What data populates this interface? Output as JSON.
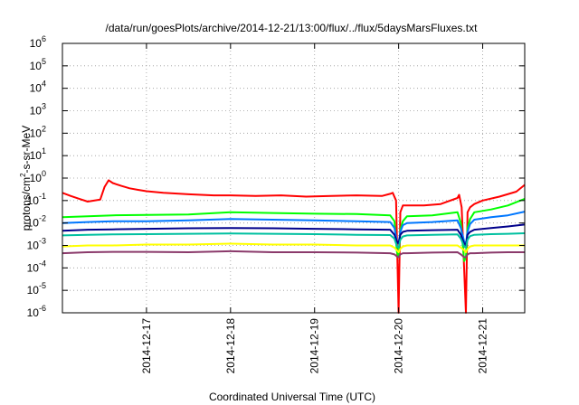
{
  "chart_data": {
    "type": "line",
    "title": "/data/run/goesPlots/archive/2014-12-21/13:00/flux/../flux/5daysMarsFluxes.txt",
    "xlabel": "Coordinated Universal Time (UTC)",
    "ylabel_parts": [
      "protons/cm",
      "2",
      "-s-sr-MeV"
    ],
    "yscale": "log",
    "ylim": [
      1e-06,
      1000000.0
    ],
    "xlim_days": [
      0,
      5.5
    ],
    "x_ticks": [
      {
        "day": 1,
        "label": "2014-12-17"
      },
      {
        "day": 2,
        "label": "2014-12-18"
      },
      {
        "day": 3,
        "label": "2014-12-19"
      },
      {
        "day": 4,
        "label": "2014-12-20"
      },
      {
        "day": 5,
        "label": "2014-12-21"
      }
    ],
    "y_ticks": [
      {
        "value": 1e-06,
        "base": "10",
        "exp": "-6"
      },
      {
        "value": 1e-05,
        "base": "10",
        "exp": "-5"
      },
      {
        "value": 0.0001,
        "base": "10",
        "exp": "-4"
      },
      {
        "value": 0.001,
        "base": "10",
        "exp": "-3"
      },
      {
        "value": 0.01,
        "base": "10",
        "exp": "-2"
      },
      {
        "value": 0.1,
        "base": "10",
        "exp": "-1"
      },
      {
        "value": 1,
        "base": "10",
        "exp": "0"
      },
      {
        "value": 10,
        "base": "10",
        "exp": "1"
      },
      {
        "value": 100,
        "base": "10",
        "exp": "2"
      },
      {
        "value": 1000,
        "base": "10",
        "exp": "3"
      },
      {
        "value": 10000,
        "base": "10",
        "exp": "4"
      },
      {
        "value": 100000,
        "base": "10",
        "exp": "5"
      },
      {
        "value": 1000000,
        "base": "10",
        "exp": "6"
      }
    ],
    "grid": "dotted",
    "series": [
      {
        "color": "#ff0000",
        "x": [
          0,
          0.1,
          0.2,
          0.3,
          0.45,
          0.5,
          0.55,
          0.6,
          0.7,
          0.8,
          0.9,
          1.0,
          1.2,
          1.5,
          1.8,
          2.0,
          2.3,
          2.6,
          2.9,
          3.2,
          3.5,
          3.8,
          3.9,
          3.93,
          3.97,
          4.0,
          4.02,
          4.05,
          4.1,
          4.3,
          4.5,
          4.7,
          4.72,
          4.75,
          4.8,
          4.82,
          4.85,
          4.9,
          5.0,
          5.2,
          5.4,
          5.5
        ],
        "y": [
          0.22,
          0.16,
          0.12,
          0.09,
          0.11,
          0.4,
          0.8,
          0.6,
          0.45,
          0.35,
          0.3,
          0.26,
          0.22,
          0.19,
          0.17,
          0.17,
          0.16,
          0.17,
          0.15,
          0.16,
          0.17,
          0.16,
          0.2,
          0.22,
          0.1,
          1e-06,
          0.03,
          0.06,
          0.06,
          0.06,
          0.07,
          0.13,
          0.18,
          0.05,
          1e-06,
          0.03,
          0.05,
          0.07,
          0.1,
          0.15,
          0.25,
          0.5
        ]
      },
      {
        "color": "#00ff00",
        "x": [
          0,
          0.3,
          0.6,
          1.0,
          1.5,
          2.0,
          2.5,
          3.0,
          3.5,
          3.9,
          3.95,
          3.98,
          4.0,
          4.02,
          4.05,
          4.1,
          4.4,
          4.7,
          4.74,
          4.78,
          4.8,
          4.82,
          4.85,
          4.9,
          5.1,
          5.3,
          5.5
        ],
        "y": [
          0.018,
          0.02,
          0.022,
          0.023,
          0.024,
          0.03,
          0.028,
          0.026,
          0.025,
          0.022,
          0.012,
          0.0005,
          0.0003,
          0.005,
          0.012,
          0.02,
          0.022,
          0.03,
          0.01,
          0.0002,
          0.0003,
          0.006,
          0.015,
          0.03,
          0.04,
          0.06,
          0.12
        ]
      },
      {
        "color": "#0077ff",
        "x": [
          0,
          0.3,
          0.6,
          1.0,
          1.5,
          2.0,
          2.5,
          3.0,
          3.5,
          3.9,
          3.95,
          3.98,
          4.0,
          4.02,
          4.05,
          4.1,
          4.4,
          4.7,
          4.74,
          4.78,
          4.8,
          4.82,
          4.85,
          4.9,
          5.1,
          5.3,
          5.5
        ],
        "y": [
          0.01,
          0.011,
          0.012,
          0.012,
          0.013,
          0.015,
          0.014,
          0.013,
          0.012,
          0.011,
          0.006,
          0.0015,
          0.0012,
          0.004,
          0.008,
          0.01,
          0.011,
          0.013,
          0.006,
          0.0015,
          0.0012,
          0.004,
          0.009,
          0.014,
          0.018,
          0.022,
          0.032
        ]
      },
      {
        "color": "#00008b",
        "x": [
          0,
          0.3,
          0.6,
          1.0,
          1.5,
          2.0,
          2.5,
          3.0,
          3.5,
          3.9,
          3.95,
          3.98,
          4.0,
          4.02,
          4.05,
          4.1,
          4.4,
          4.7,
          4.74,
          4.78,
          4.8,
          4.82,
          4.85,
          4.9,
          5.1,
          5.3,
          5.5
        ],
        "y": [
          0.0045,
          0.005,
          0.0052,
          0.0055,
          0.0058,
          0.006,
          0.0058,
          0.0055,
          0.0052,
          0.005,
          0.003,
          0.0015,
          0.0012,
          0.003,
          0.004,
          0.0045,
          0.0048,
          0.005,
          0.003,
          0.0012,
          0.001,
          0.003,
          0.004,
          0.005,
          0.006,
          0.007,
          0.0085
        ]
      },
      {
        "color": "#00c0a0",
        "x": [
          0,
          0.3,
          0.6,
          1.0,
          1.5,
          2.0,
          2.5,
          3.0,
          3.5,
          3.9,
          3.95,
          3.98,
          4.0,
          4.02,
          4.05,
          4.1,
          4.4,
          4.7,
          4.74,
          4.78,
          4.8,
          4.82,
          4.85,
          4.9,
          5.1,
          5.3,
          5.5
        ],
        "y": [
          0.0028,
          0.003,
          0.0031,
          0.0032,
          0.0033,
          0.0034,
          0.0033,
          0.0032,
          0.003,
          0.0029,
          0.002,
          0.0009,
          0.0008,
          0.0018,
          0.0025,
          0.0028,
          0.003,
          0.0031,
          0.002,
          0.0009,
          0.0008,
          0.0018,
          0.0026,
          0.003,
          0.0032,
          0.0033,
          0.0035
        ]
      },
      {
        "color": "#ffff00",
        "x": [
          0,
          0.3,
          0.6,
          1.0,
          1.5,
          2.0,
          2.5,
          3.0,
          3.5,
          3.9,
          3.95,
          3.98,
          4.0,
          4.02,
          4.05,
          4.1,
          4.4,
          4.7,
          4.74,
          4.78,
          4.8,
          4.82,
          4.85,
          4.9,
          5.1,
          5.3,
          5.5
        ],
        "y": [
          0.0009,
          0.001,
          0.001,
          0.0011,
          0.0011,
          0.0012,
          0.0011,
          0.0011,
          0.001,
          0.001,
          0.0008,
          0.0006,
          0.0005,
          0.0007,
          0.0009,
          0.001,
          0.001,
          0.001,
          0.0008,
          0.0006,
          0.0005,
          0.0007,
          0.0009,
          0.001,
          0.001,
          0.001,
          0.001
        ]
      },
      {
        "color": "#8b3a6b",
        "x": [
          0,
          0.3,
          0.6,
          1.0,
          1.5,
          2.0,
          2.5,
          3.0,
          3.5,
          3.9,
          3.95,
          3.98,
          4.0,
          4.02,
          4.05,
          4.1,
          4.4,
          4.7,
          4.74,
          4.78,
          4.8,
          4.82,
          4.85,
          4.9,
          5.1,
          5.3,
          5.5
        ],
        "y": [
          0.00045,
          0.0005,
          0.00052,
          0.00052,
          0.0005,
          0.00055,
          0.0005,
          0.0005,
          0.00048,
          0.00045,
          0.0004,
          0.00032,
          0.0003,
          0.0004,
          0.00045,
          0.00045,
          0.00048,
          0.0005,
          0.0004,
          0.0003,
          0.0003,
          0.0004,
          0.00045,
          0.00045,
          0.00048,
          0.0005,
          0.0005
        ]
      }
    ]
  }
}
